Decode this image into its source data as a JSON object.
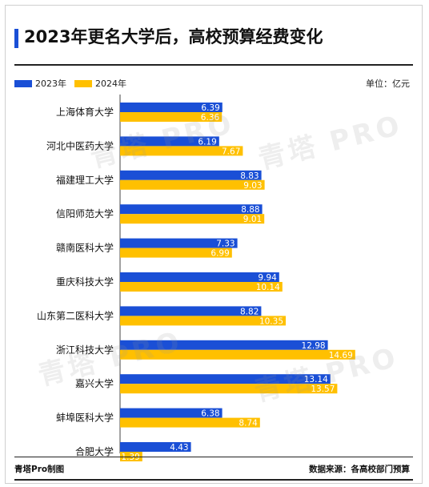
{
  "title": "2023年更名大学后，高校预算经费变化",
  "unit_label": "单位：亿元",
  "footer": {
    "credit": "青塔Pro制图",
    "source": "数据来源：各高校部门预算"
  },
  "watermark": "青塔 PRO",
  "colors": {
    "accent": "#1a4fd6",
    "series_2023": "#1a4fd6",
    "series_2024": "#ffc000"
  },
  "chart_data": {
    "type": "bar",
    "orientation": "horizontal",
    "title": "2023年更名大学后，高校预算经费变化",
    "xlabel": "",
    "ylabel": "",
    "xlim": [
      0,
      15
    ],
    "grid": false,
    "legend_position": "top-left",
    "categories": [
      "上海体育大学",
      "河北中医药大学",
      "福建理工大学",
      "信阳师范大学",
      "赣南医科大学",
      "重庆科技大学",
      "山东第二医科大学",
      "浙江科技大学",
      "嘉兴大学",
      "蚌埠医科大学",
      "合肥大学"
    ],
    "series": [
      {
        "name": "2023年",
        "color": "#1a4fd6",
        "values": [
          6.39,
          6.19,
          8.83,
          8.88,
          7.33,
          9.94,
          8.82,
          12.98,
          13.14,
          6.38,
          4.43
        ]
      },
      {
        "name": "2024年",
        "color": "#ffc000",
        "values": [
          6.36,
          7.67,
          9.03,
          9.01,
          6.99,
          10.14,
          10.35,
          14.69,
          13.57,
          8.74,
          1.39
        ]
      }
    ]
  }
}
